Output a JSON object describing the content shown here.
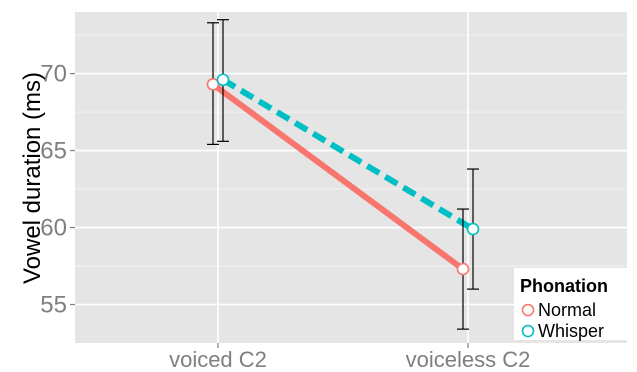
{
  "chart_data": {
    "type": "line",
    "title": "",
    "xlabel": "",
    "ylabel": "Vowel duration (ms)",
    "categories": [
      "voiced C2",
      "voiceless C2"
    ],
    "ylim": [
      52.5,
      74
    ],
    "yticks": [
      55,
      60,
      65,
      70
    ],
    "grid": true,
    "legend": {
      "title": "Phonation",
      "position": "bottom-right"
    },
    "series": [
      {
        "name": "Normal",
        "color": "#F8766D",
        "line_style": "solid",
        "values": [
          69.3,
          57.3
        ],
        "error_low": [
          65.4,
          53.4
        ],
        "error_high": [
          73.3,
          61.2
        ]
      },
      {
        "name": "Whisper",
        "color": "#00BFC4",
        "line_style": "dashed",
        "values": [
          69.6,
          59.9
        ],
        "error_low": [
          65.6,
          56.0
        ],
        "error_high": [
          73.5,
          63.8
        ]
      }
    ]
  }
}
